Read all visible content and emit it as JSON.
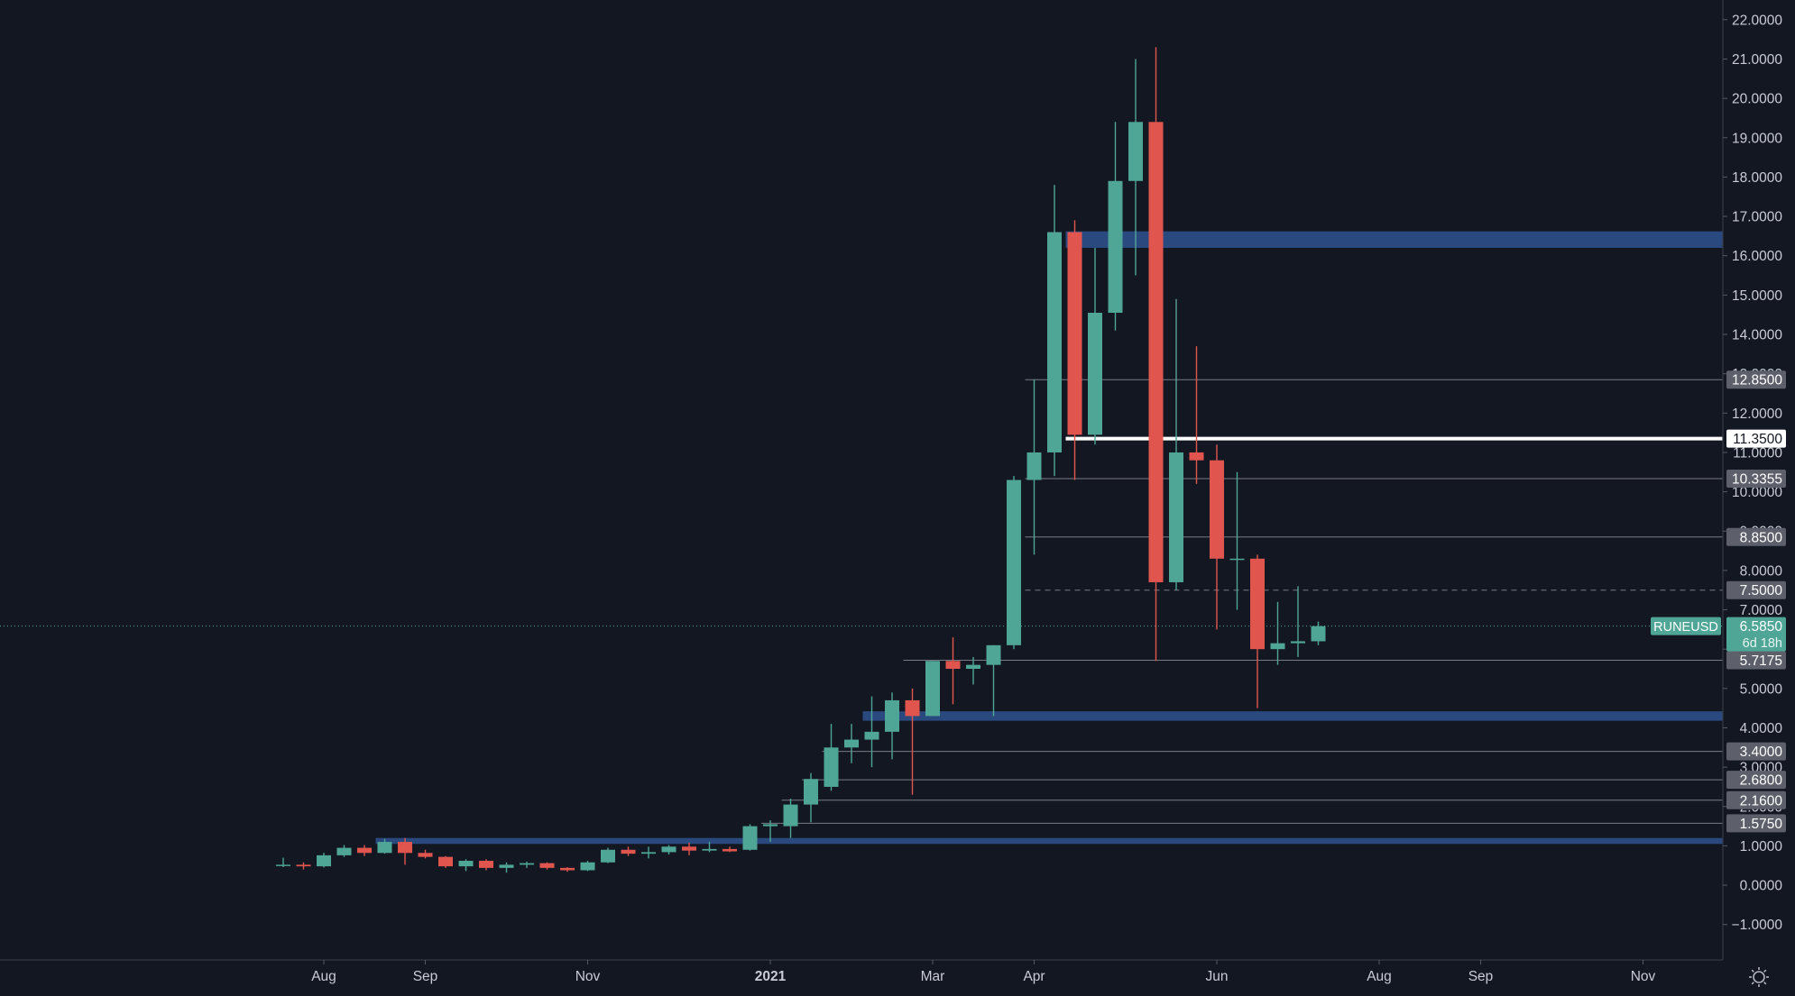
{
  "chart_data": {
    "type": "candlestick",
    "symbol": "RUNEUSD",
    "countdown": "6d 18h",
    "last_price": 6.585,
    "colors": {
      "background": "#131722",
      "up": "#4fa596",
      "down": "#e0564e",
      "zone": "#2a4a7f",
      "level_line": "#787b86",
      "key_level": "#ffffff",
      "axis_text": "#c9ccd4",
      "price_badge": "#4fa596",
      "level_badge": "#5d606b"
    },
    "y_axis": {
      "min": -1.9,
      "max": 22.5,
      "ticks": [
        -1,
        0,
        1,
        2,
        3,
        4,
        5,
        6,
        7,
        8,
        9,
        10,
        11,
        12,
        13,
        14,
        15,
        16,
        17,
        18,
        19,
        20,
        21,
        22
      ],
      "tick_labels": [
        "−1.0000",
        "0.0000",
        "1.0000",
        "2.0000",
        "3.0000",
        "4.0000",
        "5.0000",
        "6.0000",
        "7.0000",
        "8.0000",
        "9.0000",
        "10.0000",
        "11.0000",
        "12.0000",
        "13.0000",
        "14.0000",
        "15.0000",
        "16.0000",
        "17.0000",
        "18.0000",
        "19.0000",
        "20.0000",
        "21.0000",
        "22.0000"
      ]
    },
    "x_axis": {
      "labels": [
        {
          "text": "Aug",
          "week": 2,
          "bold": false
        },
        {
          "text": "Sep",
          "week": 7,
          "bold": false
        },
        {
          "text": "Nov",
          "week": 15,
          "bold": false
        },
        {
          "text": "2021",
          "week": 24,
          "bold": true
        },
        {
          "text": "Mar",
          "week": 32,
          "bold": false
        },
        {
          "text": "Apr",
          "week": 37,
          "bold": false
        },
        {
          "text": "Jun",
          "week": 46,
          "bold": false
        },
        {
          "text": "Aug",
          "week": 54,
          "bold": false
        },
        {
          "text": "Sep",
          "week": 59,
          "bold": false
        },
        {
          "text": "Nov",
          "week": 67,
          "bold": false
        }
      ]
    },
    "candles": [
      {
        "o": 0.5,
        "h": 0.7,
        "l": 0.46,
        "c": 0.52
      },
      {
        "o": 0.52,
        "h": 0.58,
        "l": 0.4,
        "c": 0.48
      },
      {
        "o": 0.48,
        "h": 0.82,
        "l": 0.45,
        "c": 0.76
      },
      {
        "o": 0.76,
        "h": 1.02,
        "l": 0.72,
        "c": 0.95
      },
      {
        "o": 0.95,
        "h": 1.02,
        "l": 0.74,
        "c": 0.82
      },
      {
        "o": 0.82,
        "h": 1.18,
        "l": 0.8,
        "c": 1.1
      },
      {
        "o": 1.1,
        "h": 1.2,
        "l": 0.52,
        "c": 0.82
      },
      {
        "o": 0.82,
        "h": 0.9,
        "l": 0.68,
        "c": 0.72
      },
      {
        "o": 0.72,
        "h": 0.74,
        "l": 0.44,
        "c": 0.48
      },
      {
        "o": 0.48,
        "h": 0.66,
        "l": 0.36,
        "c": 0.62
      },
      {
        "o": 0.62,
        "h": 0.66,
        "l": 0.38,
        "c": 0.44
      },
      {
        "o": 0.44,
        "h": 0.58,
        "l": 0.32,
        "c": 0.52
      },
      {
        "o": 0.52,
        "h": 0.6,
        "l": 0.44,
        "c": 0.56
      },
      {
        "o": 0.56,
        "h": 0.58,
        "l": 0.4,
        "c": 0.44
      },
      {
        "o": 0.44,
        "h": 0.46,
        "l": 0.34,
        "c": 0.38
      },
      {
        "o": 0.38,
        "h": 0.62,
        "l": 0.36,
        "c": 0.58
      },
      {
        "o": 0.58,
        "h": 0.95,
        "l": 0.56,
        "c": 0.9
      },
      {
        "o": 0.9,
        "h": 0.98,
        "l": 0.74,
        "c": 0.8
      },
      {
        "o": 0.8,
        "h": 0.98,
        "l": 0.68,
        "c": 0.84
      },
      {
        "o": 0.84,
        "h": 1.02,
        "l": 0.78,
        "c": 0.98
      },
      {
        "o": 0.98,
        "h": 1.08,
        "l": 0.76,
        "c": 0.88
      },
      {
        "o": 0.88,
        "h": 1.1,
        "l": 0.84,
        "c": 0.92
      },
      {
        "o": 0.92,
        "h": 0.98,
        "l": 0.84,
        "c": 0.86
      },
      {
        "o": 0.9,
        "h": 1.55,
        "l": 0.88,
        "c": 1.5
      },
      {
        "o": 1.5,
        "h": 1.65,
        "l": 1.1,
        "c": 1.55
      },
      {
        "o": 1.5,
        "h": 2.2,
        "l": 1.2,
        "c": 2.05
      },
      {
        "o": 2.05,
        "h": 2.85,
        "l": 1.6,
        "c": 2.7
      },
      {
        "o": 2.5,
        "h": 4.1,
        "l": 2.4,
        "c": 3.5
      },
      {
        "o": 3.5,
        "h": 4.1,
        "l": 3.1,
        "c": 3.7
      },
      {
        "o": 3.7,
        "h": 4.8,
        "l": 3.0,
        "c": 3.9
      },
      {
        "o": 3.9,
        "h": 4.9,
        "l": 3.2,
        "c": 4.7
      },
      {
        "o": 4.7,
        "h": 5.0,
        "l": 2.3,
        "c": 4.3
      },
      {
        "o": 4.3,
        "h": 5.7,
        "l": 4.3,
        "c": 5.7
      },
      {
        "o": 5.7,
        "h": 6.3,
        "l": 4.6,
        "c": 5.5
      },
      {
        "o": 5.5,
        "h": 5.8,
        "l": 5.1,
        "c": 5.6
      },
      {
        "o": 5.6,
        "h": 6.1,
        "l": 4.3,
        "c": 6.1
      },
      {
        "o": 6.1,
        "h": 10.4,
        "l": 6.0,
        "c": 10.3
      },
      {
        "o": 10.3,
        "h": 12.85,
        "l": 8.4,
        "c": 11.0
      },
      {
        "o": 11.0,
        "h": 17.8,
        "l": 10.4,
        "c": 16.6
      },
      {
        "o": 16.6,
        "h": 16.9,
        "l": 10.3,
        "c": 11.45
      },
      {
        "o": 11.45,
        "h": 16.2,
        "l": 11.2,
        "c": 14.55
      },
      {
        "o": 14.55,
        "h": 19.4,
        "l": 14.1,
        "c": 17.9
      },
      {
        "o": 17.9,
        "h": 21.0,
        "l": 15.5,
        "c": 19.4
      },
      {
        "o": 19.4,
        "h": 21.3,
        "l": 5.7,
        "c": 7.7
      },
      {
        "o": 7.7,
        "h": 14.9,
        "l": 7.5,
        "c": 11.0
      },
      {
        "o": 11.0,
        "h": 13.7,
        "l": 10.2,
        "c": 10.8
      },
      {
        "o": 10.8,
        "h": 11.2,
        "l": 6.5,
        "c": 8.3
      },
      {
        "o": 8.3,
        "h": 10.5,
        "l": 7.0,
        "c": 8.3
      },
      {
        "o": 8.3,
        "h": 8.4,
        "l": 4.5,
        "c": 6.0
      },
      {
        "o": 6.0,
        "h": 7.2,
        "l": 5.6,
        "c": 6.15
      },
      {
        "o": 6.15,
        "h": 7.6,
        "l": 5.8,
        "c": 6.2
      },
      {
        "o": 6.2,
        "h": 6.7,
        "l": 6.1,
        "c": 6.585
      }
    ],
    "zones": [
      {
        "from": 16.2,
        "to": 16.62,
        "start_week": 39
      },
      {
        "from": 4.18,
        "to": 4.42,
        "start_week": 29
      },
      {
        "from": 1.05,
        "to": 1.2,
        "start_week": 5
      }
    ],
    "levels": [
      {
        "value": 12.85,
        "label": "12.8500",
        "start_week": 37,
        "style": "solid"
      },
      {
        "value": 11.35,
        "label": "11.3500",
        "start_week": 39,
        "style": "key"
      },
      {
        "value": 10.3355,
        "label": "10.3355",
        "start_week": 37,
        "style": "solid"
      },
      {
        "value": 8.85,
        "label": "8.8500",
        "start_week": 37,
        "style": "solid"
      },
      {
        "value": 7.5,
        "label": "7.5000",
        "start_week": 37,
        "style": "dashed"
      },
      {
        "value": 5.7175,
        "label": "5.7175",
        "start_week": 31,
        "style": "solid"
      },
      {
        "value": 3.4,
        "label": "3.4000",
        "start_week": 27,
        "style": "solid"
      },
      {
        "value": 2.68,
        "label": "2.6800",
        "start_week": 26,
        "style": "solid"
      },
      {
        "value": 2.16,
        "label": "2.1600",
        "start_week": 25,
        "style": "solid"
      },
      {
        "value": 1.575,
        "label": "1.5750",
        "start_week": 24,
        "style": "solid"
      }
    ]
  }
}
